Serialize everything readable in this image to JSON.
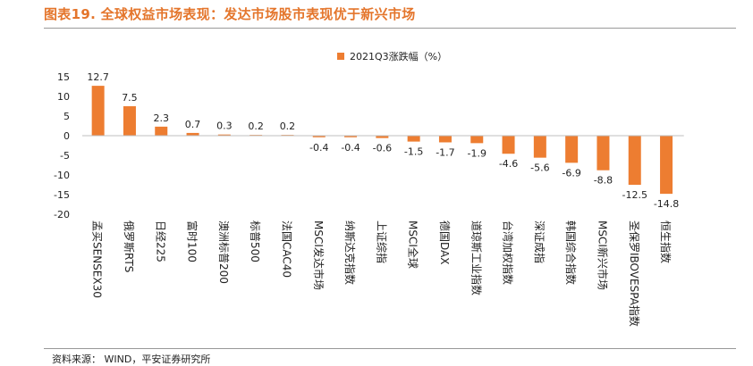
{
  "header": {
    "title": "图表19.  全球权益市场表现：发达市场股市表现优于新兴市场"
  },
  "footer": {
    "source": "资料来源：  WIND，平安证券研究所"
  },
  "colors": {
    "bar": "#ED7D31",
    "title": "#E4752B"
  },
  "chart_data": {
    "type": "bar",
    "title": "",
    "legend": [
      "2021Q3涨跌幅（%）"
    ],
    "legend_position": "top-center",
    "categories": [
      "孟买SENSEX30",
      "俄罗斯RTS",
      "日经225",
      "富时100",
      "澳洲标普200",
      "标普500",
      "法国CAC40",
      "MSCI发达市场",
      "纳斯达克指数",
      "上证综指",
      "MSCI全球",
      "德国DAX",
      "道琼斯工业指数",
      "台湾加权指数",
      "深证成指",
      "韩国综合指数",
      "MSCI新兴市场",
      "圣保罗IBOVESPA指数",
      "恒生指数"
    ],
    "series": [
      {
        "name": "2021Q3涨跌幅（%）",
        "values": [
          12.7,
          7.5,
          2.3,
          0.7,
          0.3,
          0.2,
          0.2,
          -0.4,
          -0.4,
          -0.6,
          -1.5,
          -1.7,
          -1.9,
          -4.6,
          -5.6,
          -6.9,
          -8.8,
          -12.5,
          -14.8
        ],
        "labels": [
          "12.7",
          "7.5",
          "2.3",
          "0.7",
          "0.3",
          "0.2",
          "0.2",
          "-0.4",
          "-0.4",
          "-0.6",
          "-1.5",
          "-1.7",
          "-1.9",
          "-4.6",
          "-5.6",
          "-6.9",
          "-8.8",
          "-12.5",
          "-14.8"
        ]
      }
    ],
    "yticks": [
      "15",
      "10",
      "5",
      "0",
      "-5",
      "-10",
      "-15",
      "-20"
    ],
    "ylim": [
      -20,
      15
    ],
    "xlabel": "",
    "ylabel": "",
    "grid": false
  }
}
